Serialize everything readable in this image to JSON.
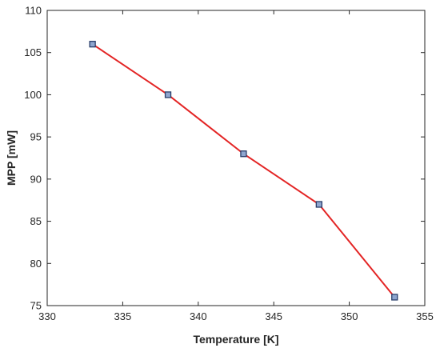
{
  "chart_data": {
    "type": "line",
    "title": "",
    "xlabel": "Temperature [K]",
    "ylabel": "MPP [mW]",
    "xlim": [
      330,
      355
    ],
    "ylim": [
      75,
      110
    ],
    "xticks": [
      330,
      335,
      340,
      345,
      350,
      355
    ],
    "yticks": [
      75,
      80,
      85,
      90,
      95,
      100,
      105,
      110
    ],
    "grid": false,
    "legend": "none",
    "series": [
      {
        "x": [
          333,
          338,
          343,
          348,
          353
        ],
        "y": [
          106,
          100,
          93,
          87,
          76
        ],
        "line_color": "#e32424",
        "marker": "square",
        "marker_face_color": "#8fa6cf",
        "marker_edge_color": "#2a3f6b"
      }
    ]
  }
}
